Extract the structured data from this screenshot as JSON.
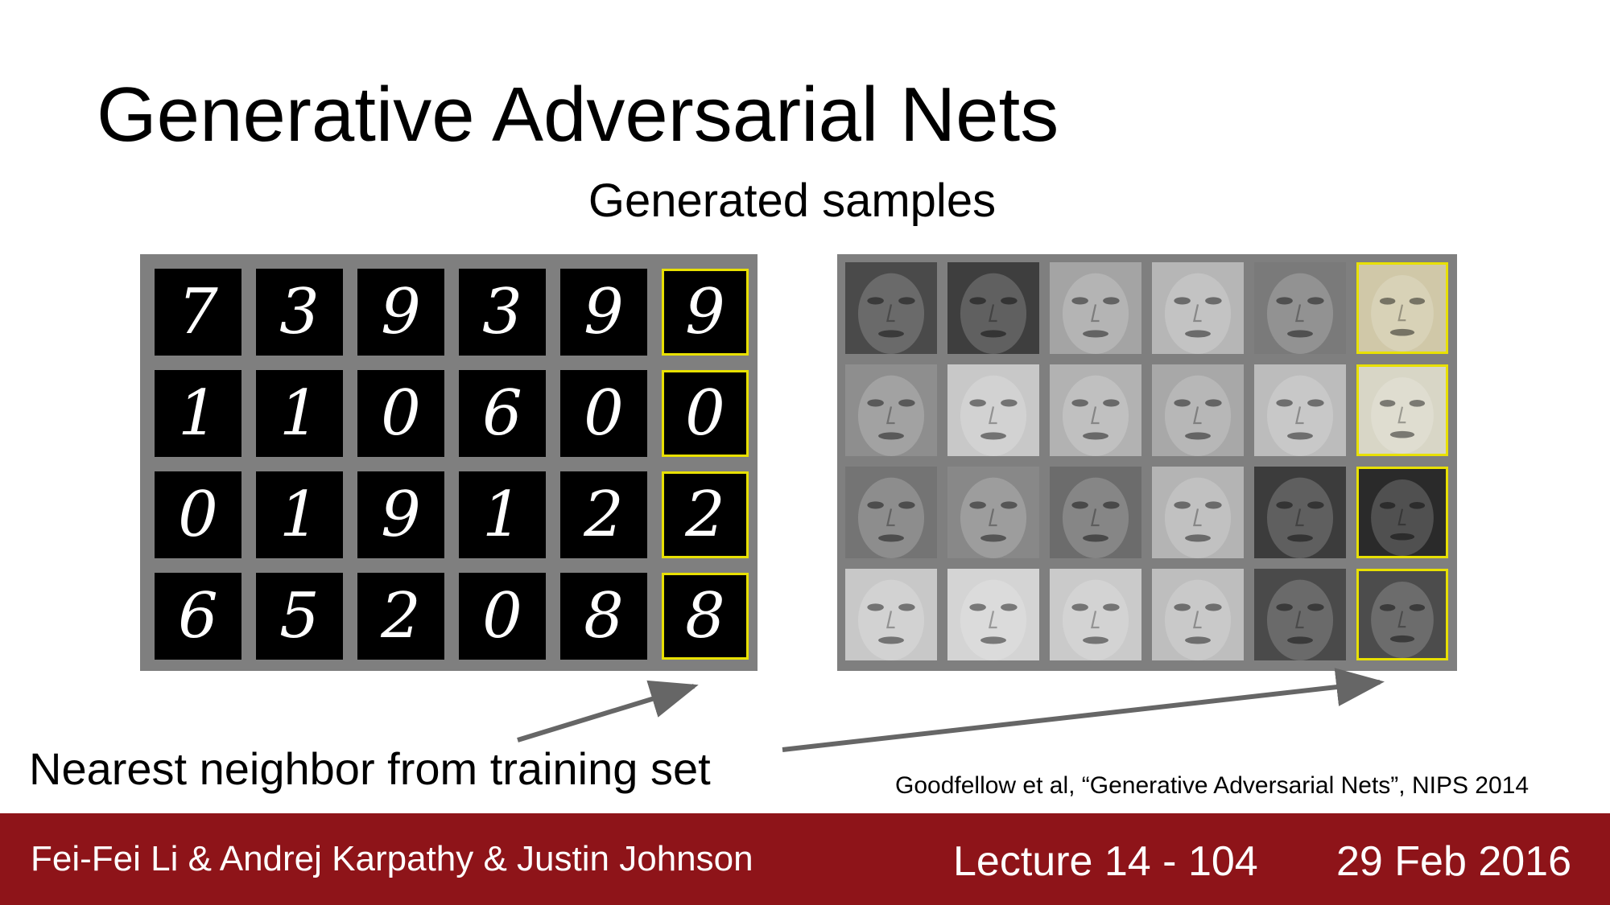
{
  "slide": {
    "title": "Generative Adversarial Nets",
    "subtitle": "Generated samples",
    "nearest_neighbor_label": "Nearest neighbor from training set",
    "citation": "Goodfellow et al, “Generative Adversarial Nets”, NIPS 2014"
  },
  "mnist_grid": {
    "rows": [
      [
        "7",
        "3",
        "9",
        "3",
        "9",
        "9"
      ],
      [
        "1",
        "1",
        "0",
        "6",
        "0",
        "0"
      ],
      [
        "0",
        "1",
        "9",
        "1",
        "2",
        "2"
      ],
      [
        "6",
        "5",
        "2",
        "0",
        "8",
        "8"
      ]
    ],
    "highlight_column": 6,
    "highlight_color": "#e8e000"
  },
  "face_grid": {
    "rows": 4,
    "columns": 6,
    "tones": [
      [
        "#4a4a4a",
        "#3e3e3e",
        "#a4a4a4",
        "#b6b6b6",
        "#7a7a7a",
        "#d0c8a8"
      ],
      [
        "#8e8e8e",
        "#c8c8c8",
        "#b2b2b2",
        "#a8a8a8",
        "#bcbcbc",
        "#d8d6c6"
      ],
      [
        "#747474",
        "#888888",
        "#6c6c6c",
        "#b4b4b4",
        "#3c3c3c",
        "#2a2a2a"
      ],
      [
        "#c8c8c8",
        "#d4d4d4",
        "#cacaca",
        "#bebebe",
        "#4a4a4a",
        "#4c4c4c"
      ]
    ],
    "highlight_column": 6,
    "highlight_color": "#e8e000"
  },
  "footer": {
    "authors": "Fei-Fei Li & Andrej Karpathy & Justin Johnson",
    "lecture": "Lecture 14 -  104",
    "date": "29 Feb 2016",
    "background_color": "#8e1419"
  },
  "arrow_color": "#666666"
}
